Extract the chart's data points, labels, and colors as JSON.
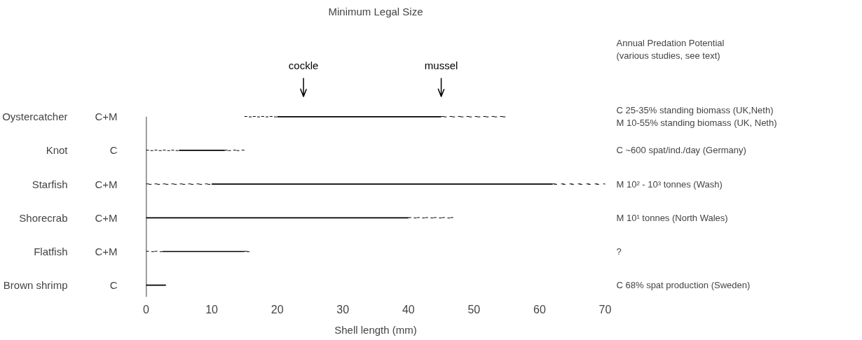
{
  "chart_data": {
    "type": "bar",
    "orientation": "horizontal",
    "title": "Minimum Legal Size",
    "xlabel": "Shell length (mm)",
    "categories": [
      "Oystercatcher",
      "Knot",
      "Starfish",
      "Shorecrab",
      "Flatfish",
      "Brown shrimp"
    ],
    "y2_categories": [
      "C+M",
      "C",
      "C+M",
      "C+M",
      "C+M",
      "C"
    ],
    "series": [
      {
        "color": "#000000",
        "line_style": "dotted",
        "base": [
          15,
          0,
          0,
          0,
          0,
          0
        ],
        "values": [
          5,
          5,
          10,
          0,
          2.5,
          0
        ]
      },
      {
        "color": "#000000",
        "line_style": "solid",
        "base": [
          20,
          5,
          10,
          0,
          2.5,
          0
        ],
        "values": [
          25,
          7,
          52,
          40,
          12.5,
          3
        ]
      },
      {
        "color": "#000000",
        "line_style": "dotted",
        "base": [
          45,
          12,
          62,
          40,
          15,
          3
        ],
        "values": [
          10,
          3,
          8,
          7,
          1,
          0
        ]
      }
    ],
    "xlim": [
      0,
      70
    ],
    "xticks": [
      0,
      10,
      20,
      30,
      40,
      50,
      60,
      70
    ],
    "grid": false,
    "ref_lines": [
      {
        "axis": "x",
        "value": 24,
        "label": "cockle"
      },
      {
        "axis": "x",
        "value": 45,
        "label": "mussel"
      }
    ],
    "annotations": [
      "Annual Predation Potential\n(various studies, see text)",
      "C 25-35% standing biomass (UK,Neth)\nM 10-55% standing biomass (UK, Neth)",
      "C ~600 spat/ind./day (Germany)",
      "M 10² - 10³  tonnes (Wash)",
      "M 10¹ tonnes (North Wales)",
      "?",
      "C 68% spat production (Sweden)"
    ]
  }
}
